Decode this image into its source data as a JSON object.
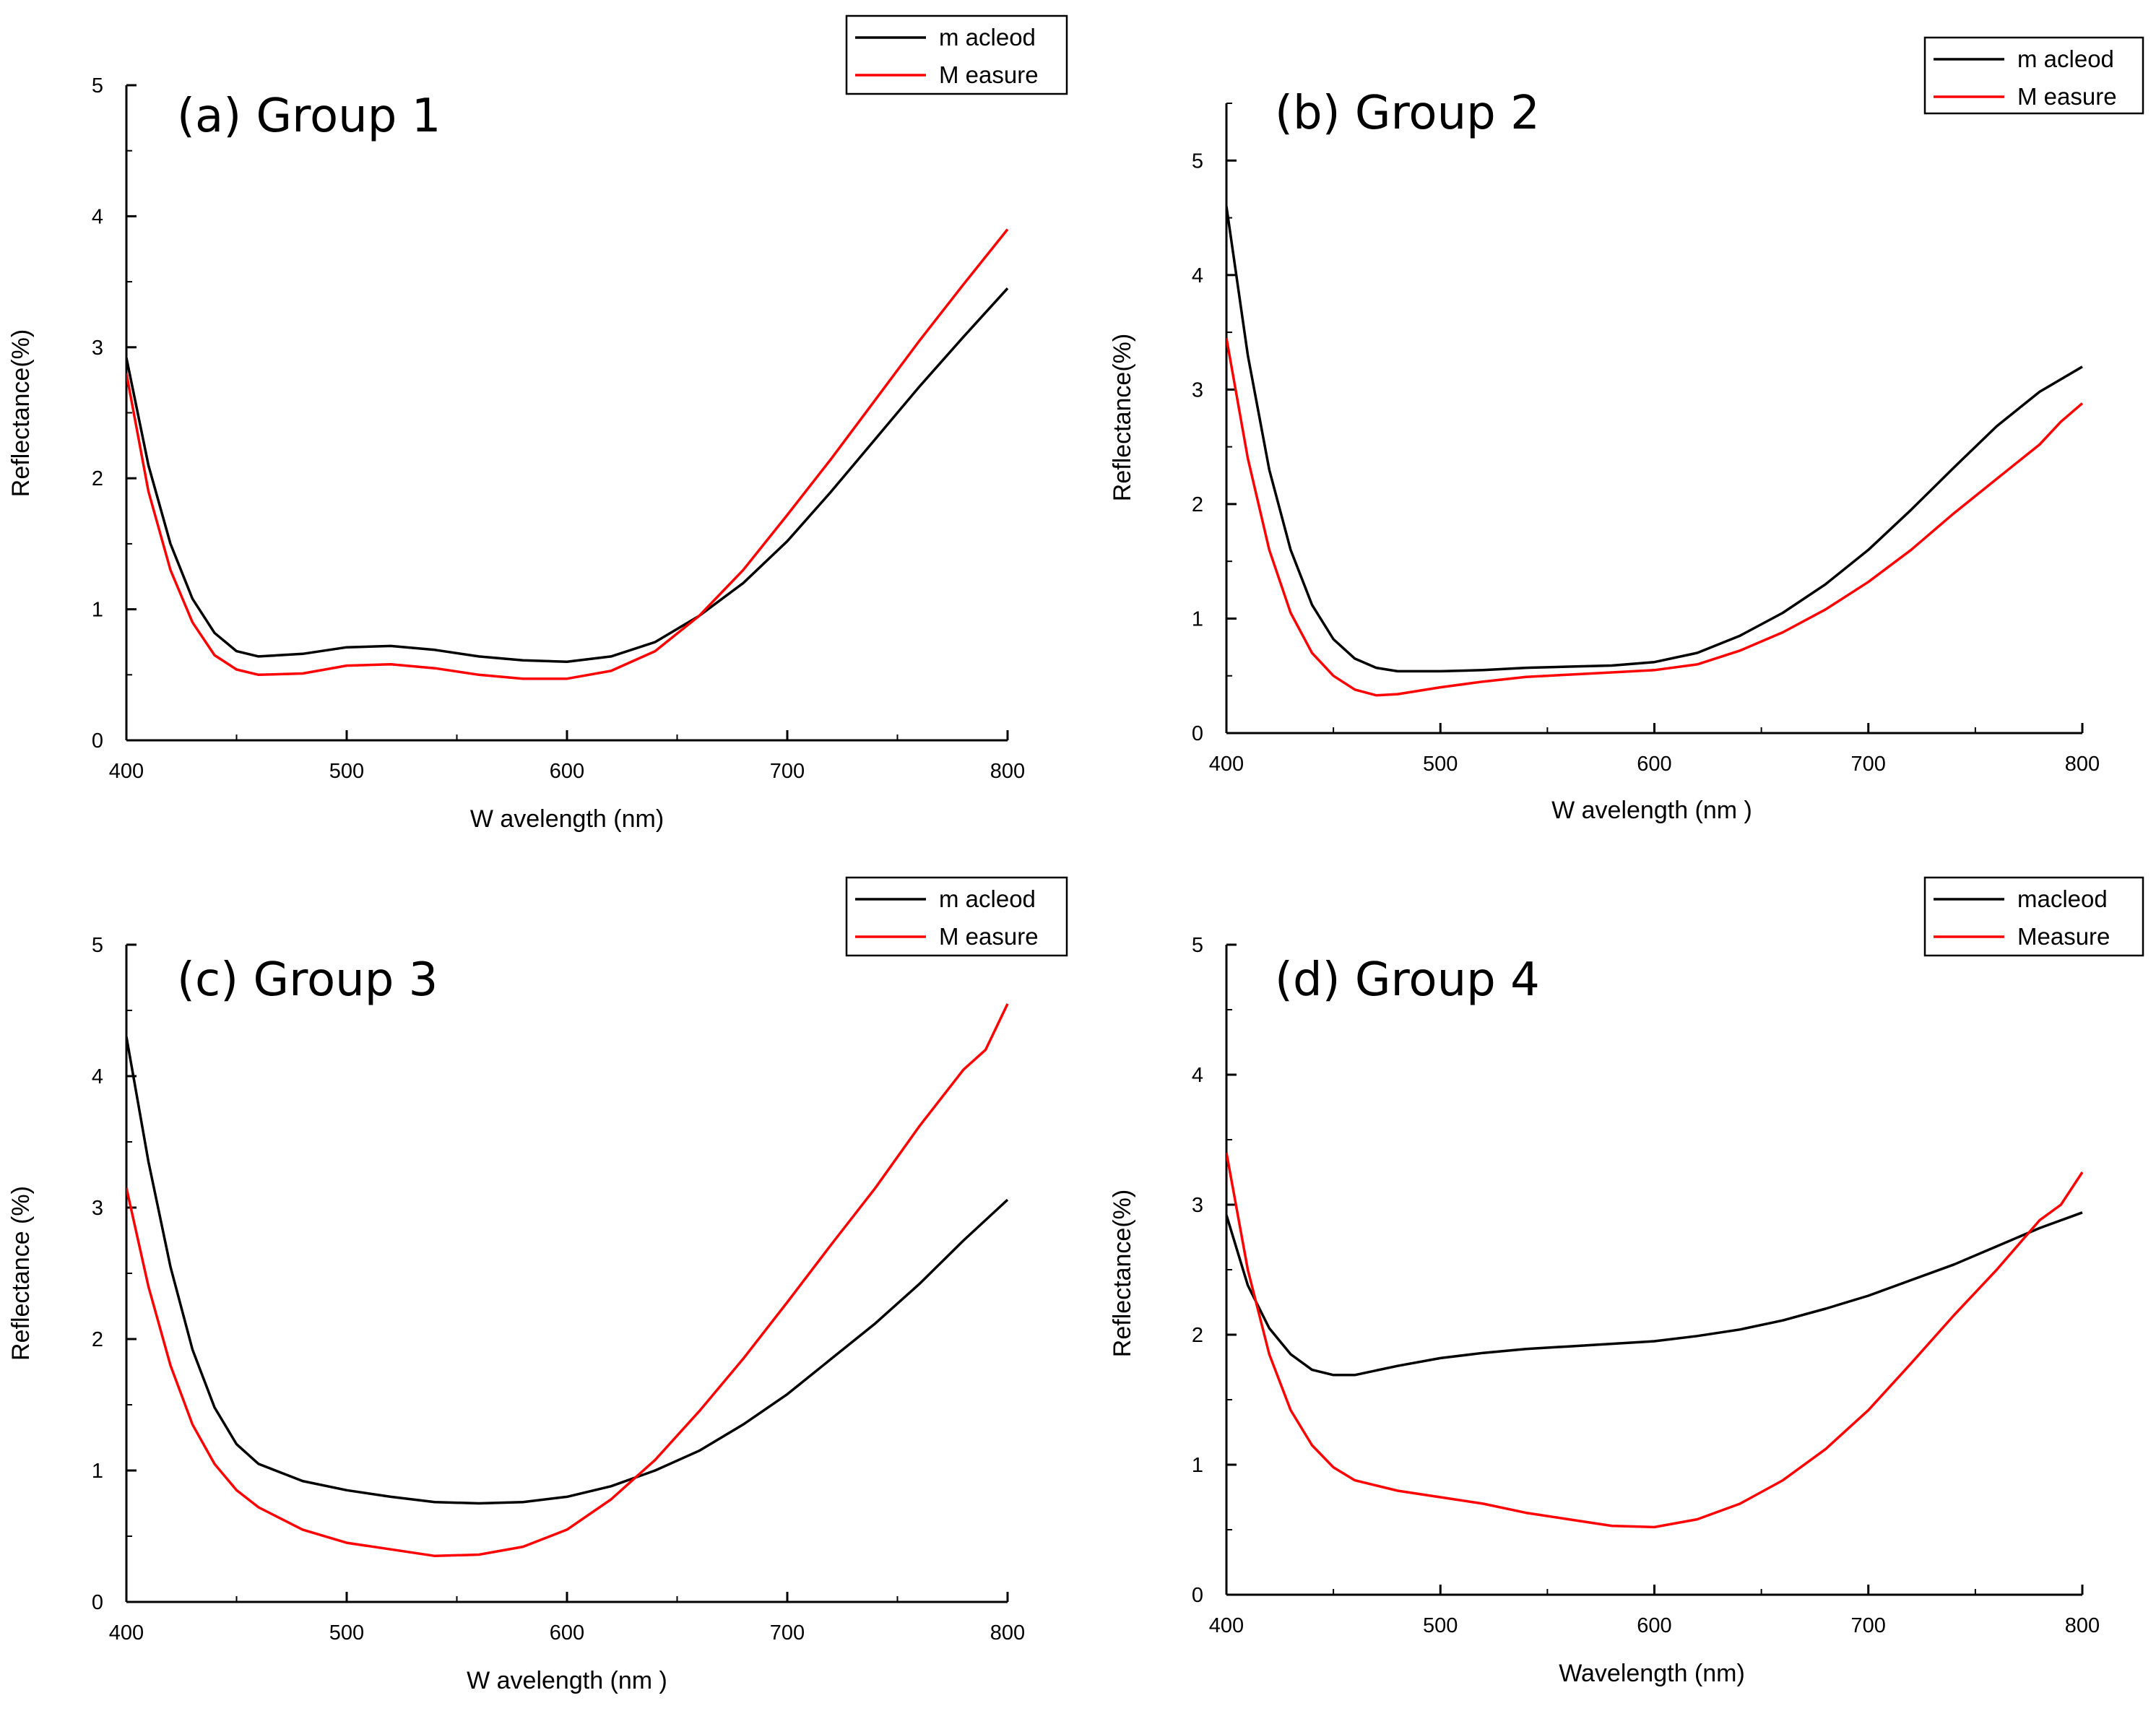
{
  "chart_data": [
    {
      "type": "line",
      "title": "(a) Group 1",
      "xlabel": "W avelength (nm)",
      "ylabel": "Reflectance(%)",
      "xlim": [
        400,
        800
      ],
      "ylim": [
        0,
        5
      ],
      "xticks": [
        400,
        500,
        600,
        700,
        800
      ],
      "yticks": [
        0,
        1,
        2,
        3,
        4,
        5
      ],
      "xtick_labels": [
        "400",
        "500",
        "600",
        "700",
        "800"
      ],
      "ytick_labels": [
        "0",
        "1",
        "2",
        "3",
        "4",
        "5"
      ],
      "legend": [
        "m acleod",
        "M easure"
      ],
      "series": [
        {
          "name": "m acleod",
          "color": "#000000",
          "points": [
            [
              400,
              2.92
            ],
            [
              410,
              2.1
            ],
            [
              420,
              1.5
            ],
            [
              430,
              1.08
            ],
            [
              440,
              0.82
            ],
            [
              450,
              0.68
            ],
            [
              460,
              0.64
            ],
            [
              480,
              0.66
            ],
            [
              500,
              0.71
            ],
            [
              520,
              0.72
            ],
            [
              540,
              0.69
            ],
            [
              560,
              0.64
            ],
            [
              580,
              0.61
            ],
            [
              600,
              0.6
            ],
            [
              620,
              0.64
            ],
            [
              640,
              0.75
            ],
            [
              660,
              0.95
            ],
            [
              680,
              1.2
            ],
            [
              700,
              1.52
            ],
            [
              720,
              1.9
            ],
            [
              740,
              2.3
            ],
            [
              760,
              2.7
            ],
            [
              780,
              3.08
            ],
            [
              800,
              3.45
            ]
          ]
        },
        {
          "name": "M easure",
          "color": "#ff0000",
          "points": [
            [
              400,
              2.8
            ],
            [
              410,
              1.9
            ],
            [
              420,
              1.3
            ],
            [
              430,
              0.9
            ],
            [
              440,
              0.65
            ],
            [
              450,
              0.54
            ],
            [
              460,
              0.5
            ],
            [
              480,
              0.51
            ],
            [
              500,
              0.57
            ],
            [
              520,
              0.58
            ],
            [
              540,
              0.55
            ],
            [
              560,
              0.5
            ],
            [
              580,
              0.47
            ],
            [
              600,
              0.47
            ],
            [
              620,
              0.53
            ],
            [
              640,
              0.68
            ],
            [
              660,
              0.95
            ],
            [
              680,
              1.3
            ],
            [
              700,
              1.72
            ],
            [
              720,
              2.15
            ],
            [
              740,
              2.6
            ],
            [
              760,
              3.05
            ],
            [
              780,
              3.48
            ],
            [
              800,
              3.9
            ]
          ]
        }
      ]
    },
    {
      "type": "line",
      "title": "(b) Group 2",
      "xlabel": "W avelength (nm )",
      "ylabel": "Reflectance(%)",
      "xlim": [
        400,
        800
      ],
      "ylim": [
        0,
        5.5
      ],
      "xticks": [
        400,
        500,
        600,
        700,
        800
      ],
      "yticks": [
        0,
        1,
        2,
        3,
        4,
        5
      ],
      "xtick_labels": [
        "400",
        "500",
        "600",
        "700",
        "800"
      ],
      "ytick_labels": [
        "0",
        "1",
        "2",
        "3",
        "4",
        "5"
      ],
      "legend": [
        "m acleod",
        "M easure"
      ],
      "series": [
        {
          "name": "m acleod",
          "color": "#000000",
          "points": [
            [
              400,
              4.6
            ],
            [
              410,
              3.3
            ],
            [
              420,
              2.3
            ],
            [
              430,
              1.6
            ],
            [
              440,
              1.12
            ],
            [
              450,
              0.82
            ],
            [
              460,
              0.65
            ],
            [
              470,
              0.57
            ],
            [
              480,
              0.54
            ],
            [
              500,
              0.54
            ],
            [
              520,
              0.55
            ],
            [
              540,
              0.57
            ],
            [
              560,
              0.58
            ],
            [
              580,
              0.59
            ],
            [
              600,
              0.62
            ],
            [
              620,
              0.7
            ],
            [
              640,
              0.85
            ],
            [
              660,
              1.05
            ],
            [
              680,
              1.3
            ],
            [
              700,
              1.6
            ],
            [
              720,
              1.95
            ],
            [
              740,
              2.32
            ],
            [
              760,
              2.68
            ],
            [
              780,
              2.98
            ],
            [
              800,
              3.2
            ]
          ]
        },
        {
          "name": "M easure",
          "color": "#ff0000",
          "points": [
            [
              400,
              3.45
            ],
            [
              410,
              2.4
            ],
            [
              420,
              1.6
            ],
            [
              430,
              1.05
            ],
            [
              440,
              0.7
            ],
            [
              450,
              0.5
            ],
            [
              460,
              0.38
            ],
            [
              470,
              0.33
            ],
            [
              480,
              0.34
            ],
            [
              500,
              0.4
            ],
            [
              520,
              0.45
            ],
            [
              540,
              0.49
            ],
            [
              560,
              0.51
            ],
            [
              580,
              0.53
            ],
            [
              600,
              0.55
            ],
            [
              620,
              0.6
            ],
            [
              640,
              0.72
            ],
            [
              660,
              0.88
            ],
            [
              680,
              1.08
            ],
            [
              700,
              1.32
            ],
            [
              720,
              1.6
            ],
            [
              740,
              1.92
            ],
            [
              760,
              2.22
            ],
            [
              780,
              2.52
            ],
            [
              790,
              2.72
            ],
            [
              800,
              2.88
            ]
          ]
        }
      ]
    },
    {
      "type": "line",
      "title": "(c) Group 3",
      "xlabel": "W avelength (nm )",
      "ylabel": "Reflectance (%)",
      "xlim": [
        400,
        800
      ],
      "ylim": [
        0,
        5
      ],
      "xticks": [
        400,
        500,
        600,
        700,
        800
      ],
      "yticks": [
        0,
        1,
        2,
        3,
        4,
        5
      ],
      "xtick_labels": [
        "400",
        "500",
        "600",
        "700",
        "800"
      ],
      "ytick_labels": [
        "0",
        "1",
        "2",
        "3",
        "4",
        "5"
      ],
      "legend": [
        "m acleod",
        "M easure"
      ],
      "series": [
        {
          "name": "m acleod",
          "color": "#000000",
          "points": [
            [
              400,
              4.3
            ],
            [
              410,
              3.35
            ],
            [
              420,
              2.55
            ],
            [
              430,
              1.92
            ],
            [
              440,
              1.48
            ],
            [
              450,
              1.2
            ],
            [
              460,
              1.05
            ],
            [
              480,
              0.92
            ],
            [
              500,
              0.85
            ],
            [
              520,
              0.8
            ],
            [
              540,
              0.76
            ],
            [
              560,
              0.75
            ],
            [
              580,
              0.76
            ],
            [
              600,
              0.8
            ],
            [
              620,
              0.88
            ],
            [
              640,
              1.0
            ],
            [
              660,
              1.15
            ],
            [
              680,
              1.35
            ],
            [
              700,
              1.58
            ],
            [
              720,
              1.85
            ],
            [
              740,
              2.12
            ],
            [
              760,
              2.42
            ],
            [
              780,
              2.75
            ],
            [
              800,
              3.06
            ]
          ]
        },
        {
          "name": "M easure",
          "color": "#ff0000",
          "points": [
            [
              400,
              3.15
            ],
            [
              410,
              2.4
            ],
            [
              420,
              1.8
            ],
            [
              430,
              1.35
            ],
            [
              440,
              1.05
            ],
            [
              450,
              0.85
            ],
            [
              460,
              0.72
            ],
            [
              480,
              0.55
            ],
            [
              500,
              0.45
            ],
            [
              520,
              0.4
            ],
            [
              540,
              0.35
            ],
            [
              560,
              0.36
            ],
            [
              580,
              0.42
            ],
            [
              600,
              0.55
            ],
            [
              620,
              0.78
            ],
            [
              640,
              1.08
            ],
            [
              660,
              1.45
            ],
            [
              680,
              1.85
            ],
            [
              700,
              2.28
            ],
            [
              720,
              2.72
            ],
            [
              740,
              3.15
            ],
            [
              760,
              3.62
            ],
            [
              780,
              4.05
            ],
            [
              790,
              4.2
            ],
            [
              800,
              4.55
            ]
          ]
        }
      ]
    },
    {
      "type": "line",
      "title": "(d) Group 4",
      "xlabel": "Wavelength (nm)",
      "ylabel": "Reflectance(%)",
      "xlim": [
        400,
        800
      ],
      "ylim": [
        0,
        5
      ],
      "xticks": [
        400,
        500,
        600,
        700,
        800
      ],
      "yticks": [
        0,
        1,
        2,
        3,
        4,
        5
      ],
      "xtick_labels": [
        "400",
        "500",
        "600",
        "700",
        "800"
      ],
      "ytick_labels": [
        "0",
        "1",
        "2",
        "3",
        "4",
        "5"
      ],
      "legend": [
        "macleod",
        "Measure"
      ],
      "series": [
        {
          "name": "macleod",
          "color": "#000000",
          "points": [
            [
              400,
              2.92
            ],
            [
              410,
              2.38
            ],
            [
              420,
              2.05
            ],
            [
              430,
              1.85
            ],
            [
              440,
              1.73
            ],
            [
              450,
              1.69
            ],
            [
              460,
              1.69
            ],
            [
              480,
              1.76
            ],
            [
              500,
              1.82
            ],
            [
              520,
              1.86
            ],
            [
              540,
              1.89
            ],
            [
              560,
              1.91
            ],
            [
              580,
              1.93
            ],
            [
              600,
              1.95
            ],
            [
              620,
              1.99
            ],
            [
              640,
              2.04
            ],
            [
              660,
              2.11
            ],
            [
              680,
              2.2
            ],
            [
              700,
              2.3
            ],
            [
              720,
              2.42
            ],
            [
              740,
              2.54
            ],
            [
              760,
              2.68
            ],
            [
              780,
              2.82
            ],
            [
              800,
              2.94
            ]
          ]
        },
        {
          "name": "Measure",
          "color": "#ff0000",
          "points": [
            [
              400,
              3.4
            ],
            [
              410,
              2.5
            ],
            [
              420,
              1.85
            ],
            [
              430,
              1.42
            ],
            [
              440,
              1.15
            ],
            [
              450,
              0.98
            ],
            [
              460,
              0.88
            ],
            [
              480,
              0.8
            ],
            [
              500,
              0.75
            ],
            [
              520,
              0.7
            ],
            [
              540,
              0.63
            ],
            [
              560,
              0.58
            ],
            [
              580,
              0.53
            ],
            [
              600,
              0.52
            ],
            [
              620,
              0.58
            ],
            [
              640,
              0.7
            ],
            [
              660,
              0.88
            ],
            [
              680,
              1.12
            ],
            [
              700,
              1.42
            ],
            [
              720,
              1.78
            ],
            [
              740,
              2.15
            ],
            [
              760,
              2.5
            ],
            [
              780,
              2.88
            ],
            [
              790,
              3.0
            ],
            [
              800,
              3.25
            ]
          ]
        }
      ]
    }
  ]
}
